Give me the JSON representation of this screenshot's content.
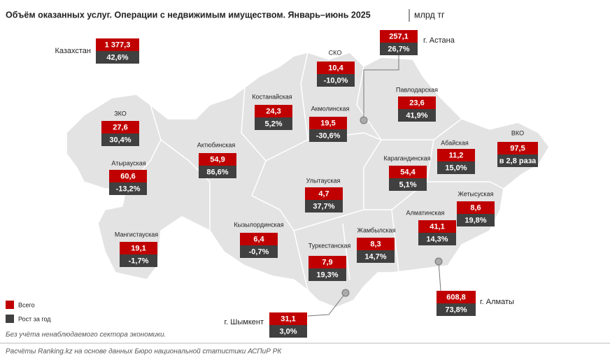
{
  "header": {
    "title": "Объём оказанных услуг. Операции с недвижимым имуществом. Январь–июнь 2025",
    "unit": "млрд тг"
  },
  "regions": [
    {
      "name": "Казахстан",
      "total": "1 377,3",
      "growth": "42,6%"
    },
    {
      "name": "г. Астана",
      "total": "257,1",
      "growth": "26,7%"
    },
    {
      "name": "СКО",
      "total": "10,4",
      "growth": "-10,0%"
    },
    {
      "name": "Костанайская",
      "total": "24,3",
      "growth": "5,2%"
    },
    {
      "name": "Акмолинская",
      "total": "19,5",
      "growth": "-30,6%"
    },
    {
      "name": "Павлодарская",
      "total": "23,6",
      "growth": "41,9%"
    },
    {
      "name": "ЗКО",
      "total": "27,6",
      "growth": "30,4%"
    },
    {
      "name": "Актюбинская",
      "total": "54,9",
      "growth": "86,6%"
    },
    {
      "name": "Абайская",
      "total": "11,2",
      "growth": "15,0%"
    },
    {
      "name": "ВКО",
      "total": "97,5",
      "growth": "в 2,8 раза"
    },
    {
      "name": "Атырауская",
      "total": "60,6",
      "growth": "-13,2%"
    },
    {
      "name": "Карагандинская",
      "total": "54,4",
      "growth": "5,1%"
    },
    {
      "name": "Улытауская",
      "total": "4,7",
      "growth": "37,7%"
    },
    {
      "name": "Жетысуская",
      "total": "8,6",
      "growth": "19,8%"
    },
    {
      "name": "Мангистауская",
      "total": "19,1",
      "growth": "-1,7%"
    },
    {
      "name": "Кызылординская",
      "total": "6,4",
      "growth": "-0,7%"
    },
    {
      "name": "Алматинская",
      "total": "41,1",
      "growth": "14,3%"
    },
    {
      "name": "Жамбылская",
      "total": "8,3",
      "growth": "14,7%"
    },
    {
      "name": "Туркестанская",
      "total": "7,9",
      "growth": "19,3%"
    },
    {
      "name": "г. Алматы",
      "total": "608,8",
      "growth": "73,8%"
    },
    {
      "name": "г. Шымкент",
      "total": "31,1",
      "growth": "3,0%"
    }
  ],
  "legend": {
    "total": "Всего",
    "growth": "Рост за год"
  },
  "footer": {
    "note": "Без учёта ненаблюдаемого сектора экономики.",
    "source": "Расчёты Ranking.kz на основе данных Бюро национальной статистики АСПиР РК"
  }
}
